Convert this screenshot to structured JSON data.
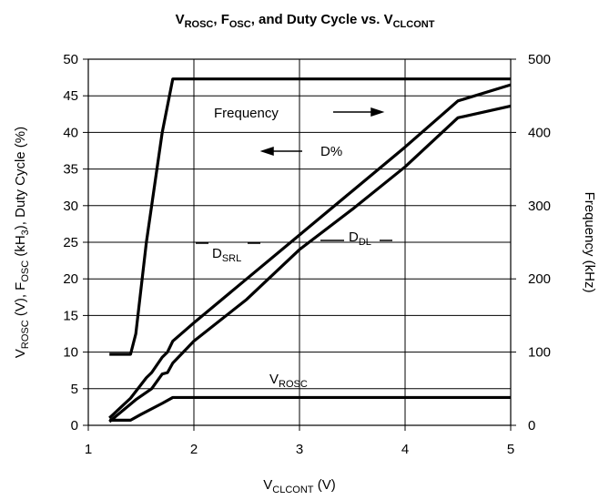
{
  "chart_data": {
    "type": "line",
    "title": [
      "V",
      "ROSC",
      ", F",
      "OSC",
      ", and Duty Cycle vs. V",
      "CLCONT"
    ],
    "x_label": [
      "V",
      "CLCONT",
      " (V)"
    ],
    "y_label": [
      "V",
      "ROSC",
      " (V), F",
      "OSC",
      " (kH",
      "3",
      "), Duty Cycle (%)"
    ],
    "y2_label": "Frequency (kHz)",
    "annotations": [
      [
        "Frequency"
      ],
      [
        "D%"
      ],
      [
        "D",
        "SRL"
      ],
      [
        "D",
        "DL"
      ],
      [
        "V",
        "ROSC"
      ]
    ],
    "xlim": [
      1,
      5
    ],
    "xticks": [
      1,
      2,
      3,
      4,
      5
    ],
    "ylim": [
      0,
      50
    ],
    "yticks": [
      0,
      5,
      10,
      15,
      20,
      25,
      30,
      35,
      40,
      45,
      50
    ],
    "y2lim": [
      0,
      500
    ],
    "y2ticks": [
      0,
      100,
      200,
      300,
      400,
      500
    ],
    "grid": true,
    "series": [
      {
        "color": "#000000",
        "axis": "y2",
        "x": [
          1.2,
          1.4,
          1.45,
          1.55,
          1.65,
          1.7,
          1.8,
          5
        ],
        "values": [
          97,
          97,
          125,
          250,
          350,
          400,
          473,
          473
        ]
      },
      {
        "color": "#000000",
        "x": [
          1.2,
          1.4,
          1.55,
          1.6,
          1.7,
          1.75,
          1.8,
          2,
          2.5,
          3,
          3.5,
          4,
          4.5,
          5
        ],
        "values": [
          1,
          3.7,
          6.5,
          7.2,
          9.3,
          10,
          11.5,
          14,
          20,
          26,
          32,
          38,
          44.3,
          46.5
        ]
      },
      {
        "color": "#000000",
        "x": [
          1.2,
          1.45,
          1.6,
          1.7,
          1.75,
          1.8,
          2,
          2.5,
          3,
          3.5,
          4,
          4.5,
          5
        ],
        "values": [
          0.5,
          3.5,
          5,
          7,
          7.2,
          8.5,
          11.5,
          17.2,
          24,
          29.5,
          35.3,
          42,
          43.6
        ]
      },
      {
        "color": "#000000",
        "x": [
          1.2,
          1.4,
          1.5,
          1.7,
          1.8,
          5
        ],
        "values": [
          0.7,
          0.7,
          1.5,
          3,
          3.8,
          3.8
        ]
      }
    ]
  }
}
